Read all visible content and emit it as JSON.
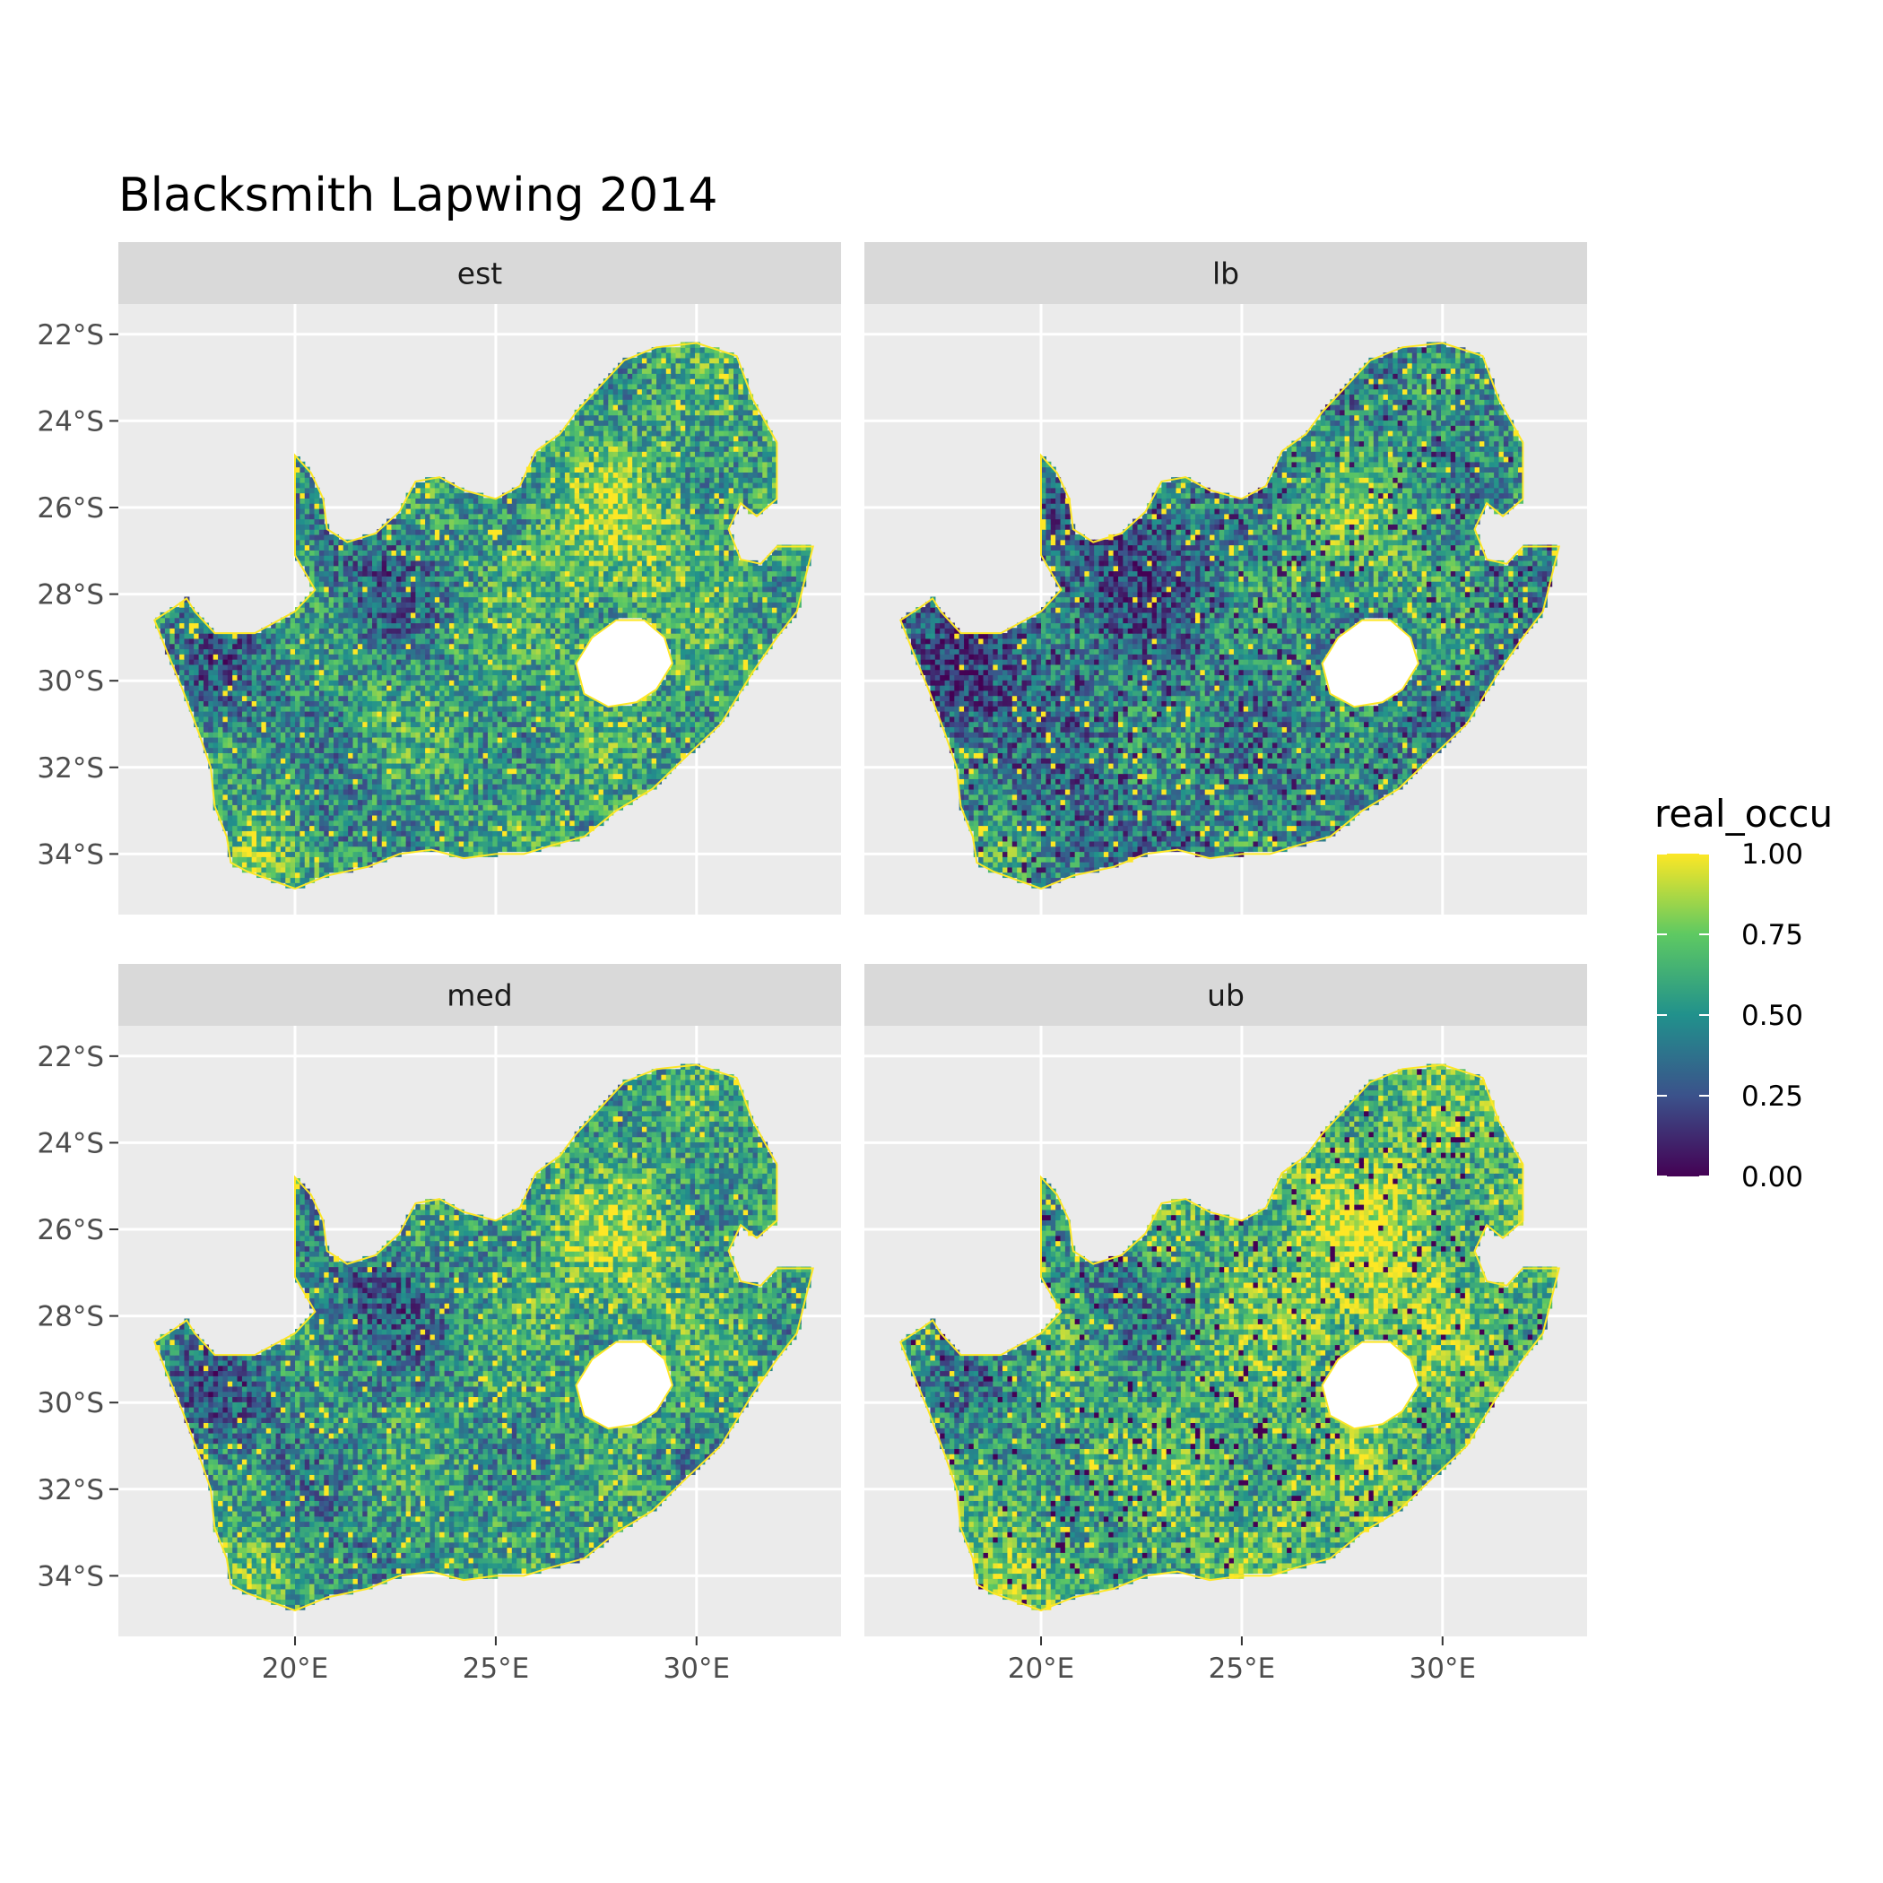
{
  "title": "Blacksmith Lapwing 2014",
  "panels": [
    {
      "label": "est",
      "mean_level": 0.62
    },
    {
      "label": "lb",
      "mean_level": 0.5
    },
    {
      "label": "med",
      "mean_level": 0.6
    },
    {
      "label": "ub",
      "mean_level": 0.72
    }
  ],
  "x_axis": {
    "ticks": [
      {
        "value": 20,
        "label": "20°E"
      },
      {
        "value": 25,
        "label": "25°E"
      },
      {
        "value": 30,
        "label": "30°E"
      }
    ],
    "range": [
      15.6,
      33.6
    ]
  },
  "y_axis": {
    "ticks": [
      {
        "value": -22,
        "label": "22°S"
      },
      {
        "value": -24,
        "label": "24°S"
      },
      {
        "value": -26,
        "label": "26°S"
      },
      {
        "value": -28,
        "label": "28°S"
      },
      {
        "value": -30,
        "label": "30°S"
      },
      {
        "value": -32,
        "label": "32°S"
      },
      {
        "value": -34,
        "label": "34°S"
      }
    ],
    "range": [
      -35.4,
      -21.3
    ]
  },
  "legend": {
    "title": "real_occu",
    "labels": [
      "1.00",
      "0.75",
      "0.50",
      "0.25",
      "0.00"
    ],
    "values": [
      1.0,
      0.75,
      0.5,
      0.25,
      0.0
    ],
    "colors": [
      "#fde725",
      "#5ec962",
      "#21918c",
      "#3b528b",
      "#440154"
    ]
  },
  "colors": {
    "panel_background": "#ebebeb",
    "grid": "#ffffff",
    "strip_background": "#d9d9d9",
    "no_data": "#ffffff"
  }
}
